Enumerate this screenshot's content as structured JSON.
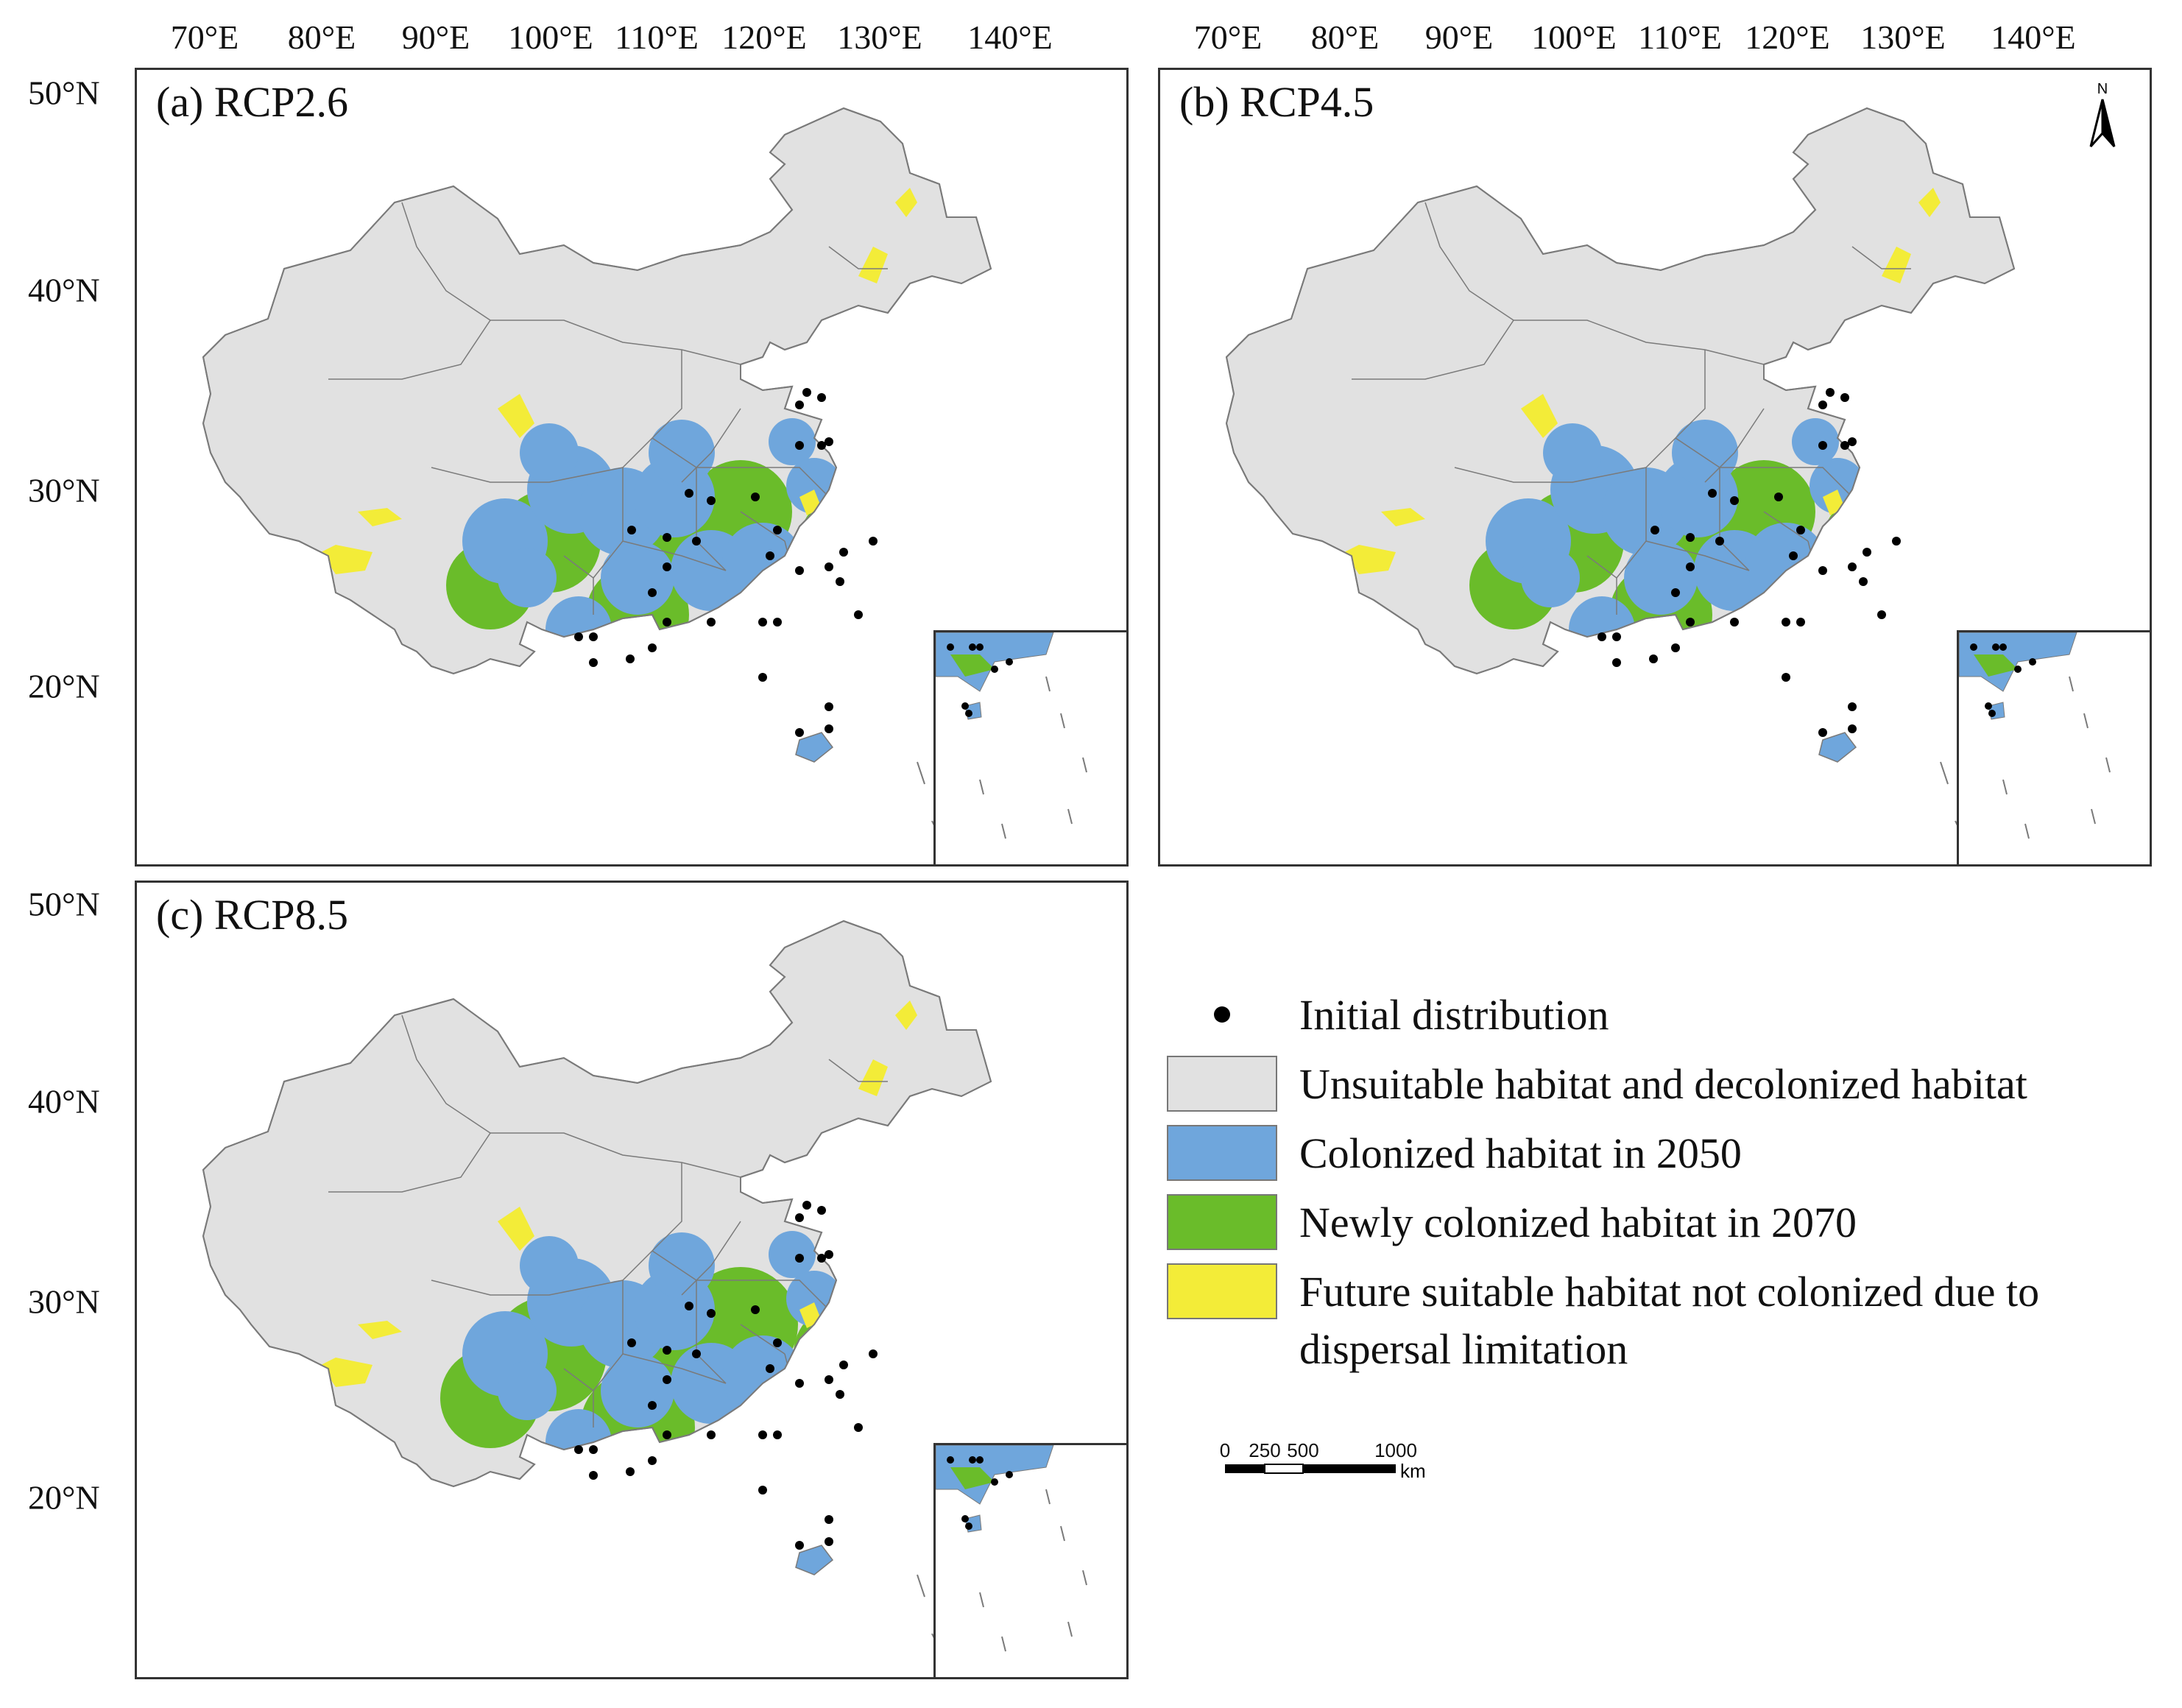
{
  "longitude_ticks": [
    "70°E",
    "80°E",
    "90°E",
    "100°E",
    "110°E",
    "120°E",
    "130°E",
    "140°E"
  ],
  "latitude_ticks": [
    "50°N",
    "40°N",
    "30°N",
    "20°N"
  ],
  "panels": [
    {
      "id": "a",
      "title": "(a) RCP2.6"
    },
    {
      "id": "b",
      "title": "(b) RCP4.5"
    },
    {
      "id": "c",
      "title": "(c) RCP8.5"
    }
  ],
  "north_arrow": {
    "label": "N"
  },
  "legend": [
    {
      "label": "Initial distribution",
      "symbol": "dot",
      "color": "#000000"
    },
    {
      "label": "Unsuitable habitat and decolonized habitat",
      "symbol": "box",
      "color": "#e1e1e1"
    },
    {
      "label": "Colonized habitat in 2050",
      "symbol": "box",
      "color": "#6fa6dc"
    },
    {
      "label": "Newly colonized habitat in 2070",
      "symbol": "box",
      "color": "#6abc2a"
    },
    {
      "label": "Future suitable habitat not colonized due to dispersal limitation",
      "symbol": "box",
      "color": "#f3ec38"
    }
  ],
  "scale_bar": {
    "labels": [
      "0",
      "250",
      "500",
      "1000"
    ],
    "unit": "km"
  },
  "colors": {
    "unsuitable": "#e1e1e1",
    "colonized_2050": "#6fa6dc",
    "newly_colonized_2070": "#6abc2a",
    "not_colonized": "#f3ec38",
    "border": "#7a7a7a",
    "occurrence_point": "#000000"
  }
}
